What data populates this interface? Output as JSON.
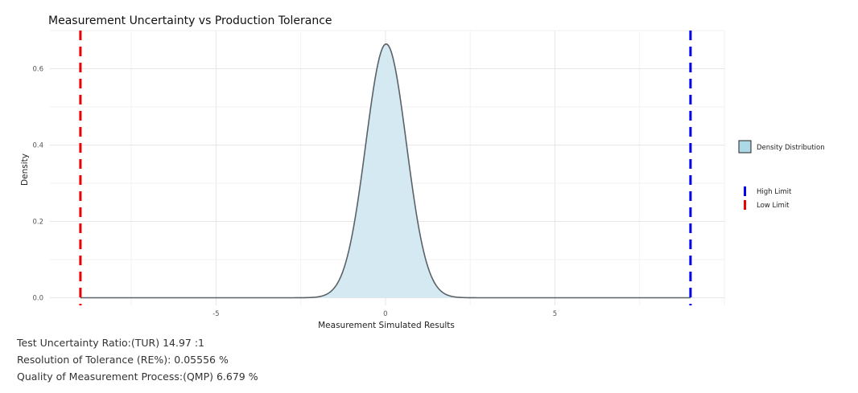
{
  "chart_data": {
    "type": "area",
    "title": "Measurement Uncertainty vs Production Tolerance",
    "xlabel": "Measurement Simulated Results",
    "ylabel": "Density",
    "xlim": [
      -9.9,
      10
    ],
    "ylim": [
      -0.02,
      0.7
    ],
    "x_ticks": [
      -5,
      0,
      5
    ],
    "x_tick_labels": [
      "-5",
      "0",
      "5"
    ],
    "y_ticks": [
      0.0,
      0.2,
      0.4,
      0.6
    ],
    "y_tick_labels": [
      "0.0",
      "0.2",
      "0.4",
      "0.6"
    ],
    "grid": true,
    "series": [
      {
        "name": "Density Distribution",
        "distribution": "normal",
        "mean": 0.02,
        "sd": 0.6,
        "x_range": [
          -9,
          9
        ],
        "peak_density": 0.665,
        "fill": "#d4e9f1",
        "stroke": "#5a6268"
      }
    ],
    "reference_lines": [
      {
        "name": "Low Limit",
        "x": -9,
        "color": "#ee0000",
        "style": "dashed"
      },
      {
        "name": "High Limit",
        "x": 9,
        "color": "#0000ee",
        "style": "dashed"
      }
    ],
    "legend": {
      "placement": "right",
      "fill_entry": "Density Distribution",
      "line_entries": [
        "High Limit",
        "Low Limit"
      ]
    }
  },
  "stats": {
    "tur": "Test Uncertainty Ratio:(TUR) 14.97 :1",
    "res": "Resolution of Tolerance (RE%): 0.05556 %",
    "qmp": "Quality of Measurement Process:(QMP) 6.679 %"
  }
}
